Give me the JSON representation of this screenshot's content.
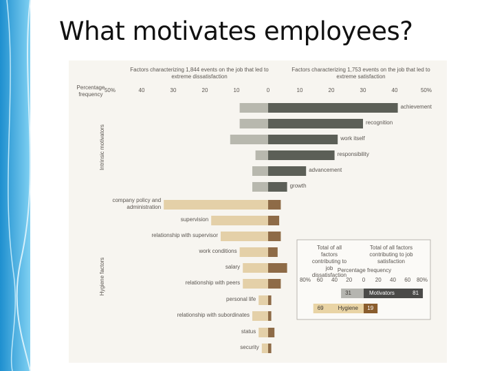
{
  "slide_title": "What motivates employees?",
  "chart_data": {
    "type": "diverging-bar",
    "left_header": "Factors characterizing 1,844 events on the job that led to extreme dissatisfaction",
    "right_header": "Factors characterizing 1,753 events on the job that led to extreme satisfaction",
    "axis_label": "Percentage frequency",
    "xlim_left": [
      0,
      50
    ],
    "xticks_left": [
      {
        "value": 50,
        "label": "50%"
      },
      40,
      30,
      20,
      10
    ],
    "xlim_right": [
      0,
      50
    ],
    "xticks_right": [
      0,
      10,
      20,
      30,
      40,
      {
        "value": 50,
        "label": "50%"
      }
    ],
    "groups": [
      {
        "label": "Intrinsic motivators",
        "categories": [
          "achievement",
          "recognition",
          "work itself",
          "responsibility",
          "advancement",
          "growth"
        ],
        "series": [
          {
            "color": "#b8b8ae",
            "values": [
              9,
              9,
              12,
              4,
              5,
              5
            ]
          },
          {
            "color": "#5c5f57",
            "values": [
              41,
              30,
              22,
              21,
              12,
              6
            ]
          }
        ]
      },
      {
        "label": "Hygiene factors",
        "categories": [
          "company policy and administration",
          "supervision",
          "relationship with supervisor",
          "work conditions",
          "salary",
          "relationship with peers",
          "personal life",
          "relationship with subordinates",
          "status",
          "security"
        ],
        "series": [
          {
            "color": "#e4d0a8",
            "values": [
              33,
              18,
              15,
              9,
              8,
              8,
              3,
              5,
              3,
              2
            ]
          },
          {
            "color": "#8e6b47",
            "values": [
              4,
              3.5,
              4,
              3,
              6,
              4,
              1,
              1,
              2,
              1
            ]
          }
        ]
      }
    ],
    "inset": {
      "type": "diverging-bar",
      "axis_label": "Percentage frequency",
      "categories": [
        "Motivators",
        "Hygiene"
      ],
      "xlim_left": [
        0,
        80
      ],
      "xticks_left": [
        {
          "value": 80,
          "label": "80%"
        },
        60,
        40,
        20
      ],
      "xlim_right": [
        0,
        80
      ],
      "xticks_right": [
        0,
        20,
        40,
        60,
        {
          "value": 80,
          "label": "80%"
        }
      ],
      "series": [
        {
          "name": "Total of all factors contributing to job dissatisfaction",
          "colors": [
            "#b5b5b0",
            "#e9d4a5"
          ],
          "values": [
            31,
            69
          ]
        },
        {
          "name": "Total of all factors contributing to job satisfaction",
          "colors": [
            "#4a4a48",
            "#8a5d2d"
          ],
          "values": [
            81,
            19
          ]
        }
      ]
    }
  }
}
